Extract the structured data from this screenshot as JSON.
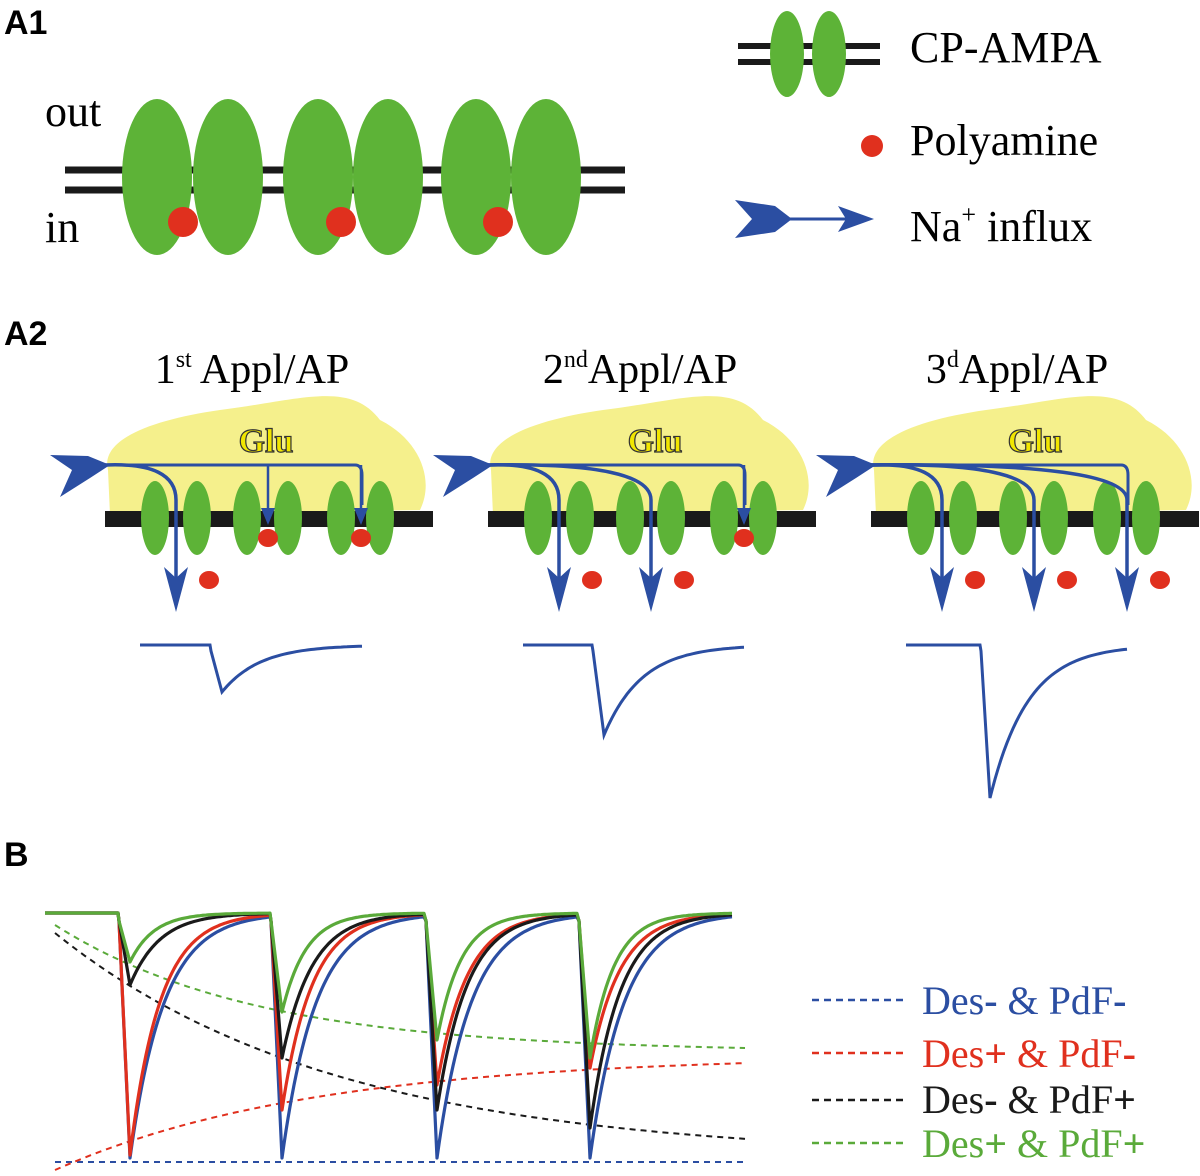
{
  "panel_labels": {
    "a1": "A1",
    "a2": "A2",
    "b": "B"
  },
  "a1": {
    "out_label": "out",
    "in_label": "in"
  },
  "legend_a": {
    "cp_ampa": "CP-AMPA",
    "polyamine": "Polyamine",
    "na_base": "Na",
    "na_sup": "+",
    "na_rest": " influx"
  },
  "a2": {
    "panels": [
      {
        "num": "1",
        "sup": "st",
        "rest": " Appl/AP",
        "glu": "Glu"
      },
      {
        "num": "2",
        "sup": "nd",
        "rest": "Appl/AP",
        "glu": "Glu"
      },
      {
        "num": "3",
        "sup": "d",
        "rest": "Appl/AP",
        "glu": "Glu"
      }
    ]
  },
  "legend_b": [
    {
      "des": "Des",
      "des_sign": "-",
      "amp": " & ",
      "pdf": "PdF",
      "pdf_sign": "-",
      "color": "#2b4ea2"
    },
    {
      "des": "Des",
      "des_sign": "+",
      "amp": " & ",
      "pdf": "PdF",
      "pdf_sign": "-",
      "color": "#e0301e"
    },
    {
      "des": "Des",
      "des_sign": "-",
      "amp": " & ",
      "pdf": "PdF",
      "pdf_sign": "+",
      "color": "#1a1a1a"
    },
    {
      "des": "Des",
      "des_sign": "+",
      "amp": " & ",
      "pdf": "PdF",
      "pdf_sign": "+",
      "color": "#5aaa3a"
    }
  ],
  "colors": {
    "receptor": "#5db337",
    "polyamine": "#e0301e",
    "na_influx": "#2b4ea2",
    "glutamate": "#f5f08c",
    "membrane": "#1a1a1a"
  }
}
